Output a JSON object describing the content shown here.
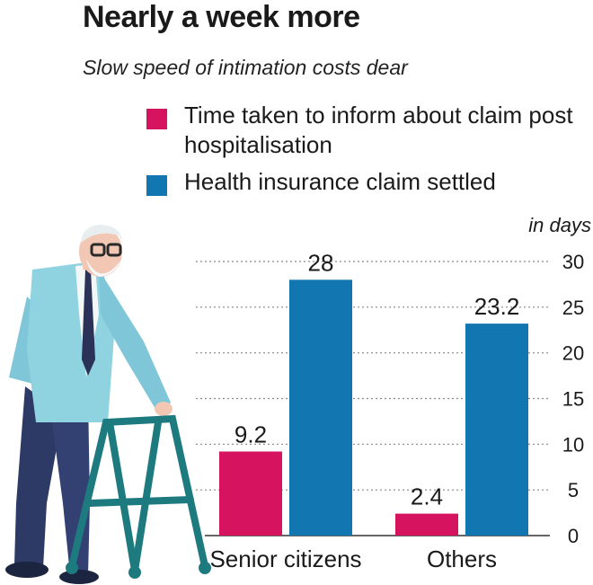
{
  "header": {
    "title": "Nearly a week more",
    "subtitle": "Slow speed of intimation costs dear"
  },
  "chart_data": {
    "type": "bar",
    "unit_label": "in days",
    "categories": [
      "Senior citizens",
      "Others"
    ],
    "series": [
      {
        "name": "Time taken to inform about claim post hospitalisation",
        "color": "#d6135f",
        "values": [
          9.2,
          2.4
        ]
      },
      {
        "name": "Health insurance claim settled",
        "color": "#1276b0",
        "values": [
          28,
          23.2
        ]
      }
    ],
    "value_labels": [
      [
        "9.2",
        "2.4"
      ],
      [
        "28",
        "23.2"
      ]
    ],
    "ylim": [
      0,
      30
    ],
    "yticks": [
      0,
      5,
      10,
      15,
      20,
      25,
      30
    ],
    "grid": true,
    "legend_position": "top"
  }
}
